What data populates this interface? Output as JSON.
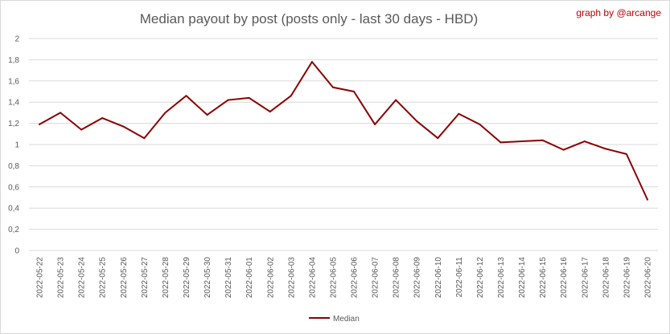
{
  "chart_data": {
    "type": "line",
    "title": "Median payout by post (posts only - last 30 days - HBD)",
    "credit": "graph by @arcange",
    "xlabel": "",
    "ylabel": "",
    "ylim": [
      0,
      2
    ],
    "y_ticks": [
      "0",
      "0,2",
      "0,4",
      "0,6",
      "0,8",
      "1",
      "1,2",
      "1,4",
      "1,6",
      "1,8",
      "2"
    ],
    "grid": "horizontal",
    "legend_position": "bottom",
    "categories": [
      "2022-05-22",
      "2022-05-23",
      "2022-05-24",
      "2022-05-25",
      "2022-05-26",
      "2022-05-27",
      "2022-05-28",
      "2022-05-29",
      "2022-05-30",
      "2022-05-31",
      "2022-06-01",
      "2022-06-02",
      "2022-06-03",
      "2022-06-04",
      "2022-06-05",
      "2022-06-06",
      "2022-06-07",
      "2022-06-08",
      "2022-06-09",
      "2022-06-10",
      "2022-06-11",
      "2022-06-12",
      "2022-06-13",
      "2022-06-14",
      "2022-06-15",
      "2022-06-16",
      "2022-06-17",
      "2022-06-18",
      "2022-06-19",
      "2022-06-20"
    ],
    "series": [
      {
        "name": "Median",
        "color": "#8b0000",
        "values": [
          1.19,
          1.3,
          1.14,
          1.25,
          1.17,
          1.06,
          1.3,
          1.46,
          1.28,
          1.42,
          1.44,
          1.31,
          1.46,
          1.78,
          1.54,
          1.5,
          1.19,
          1.42,
          1.22,
          1.06,
          1.29,
          1.19,
          1.02,
          1.03,
          1.04,
          0.95,
          1.03,
          0.96,
          0.91,
          0.48
        ]
      }
    ]
  },
  "colors": {
    "line": "#8b0000",
    "credit": "#c00000",
    "grid": "#d9d9d9",
    "text": "#595959"
  }
}
